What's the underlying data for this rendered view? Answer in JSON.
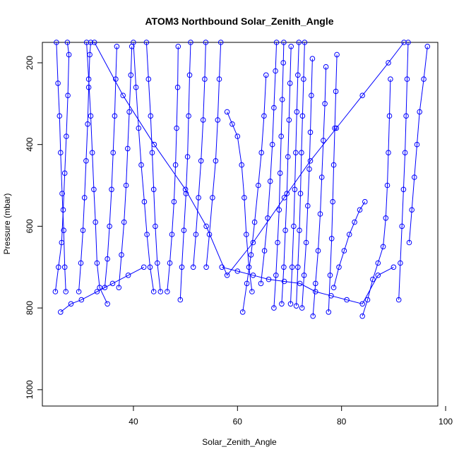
{
  "chart_data": {
    "type": "scatter",
    "title": "ATOM3 Northbound Solar_Zenith_Angle",
    "xlabel": "Solar_Zenith_Angle",
    "ylabel": "Pressure (mbar)",
    "xlim": [
      22.5,
      98.5
    ],
    "ylim": [
      1040,
      150
    ],
    "y_reversed": true,
    "x_ticks": [
      40,
      60,
      80,
      100
    ],
    "y_ticks": [
      200,
      400,
      600,
      800,
      1000
    ],
    "grid": false,
    "legend": "none",
    "color": "#0000ff",
    "series": [
      {
        "points": [
          [
            25,
            760
          ],
          [
            25.6,
            700
          ],
          [
            26.2,
            640
          ],
          [
            26.5,
            560
          ],
          [
            26.8,
            470
          ],
          [
            27.1,
            380
          ],
          [
            27.4,
            280
          ],
          [
            27.6,
            180
          ],
          [
            27.3,
            150
          ]
        ]
      },
      {
        "points": [
          [
            25.2,
            150
          ],
          [
            25.5,
            250
          ],
          [
            25.8,
            330
          ],
          [
            26,
            420
          ],
          [
            26.3,
            520
          ],
          [
            26.6,
            610
          ],
          [
            26.8,
            700
          ],
          [
            27,
            760
          ]
        ]
      },
      {
        "points": [
          [
            29.5,
            760
          ],
          [
            29.9,
            690
          ],
          [
            30.3,
            610
          ],
          [
            30.6,
            530
          ],
          [
            30.9,
            440
          ],
          [
            31.2,
            350
          ],
          [
            31.4,
            260
          ],
          [
            31.6,
            180
          ],
          [
            31.8,
            150
          ]
        ]
      },
      {
        "points": [
          [
            31,
            150
          ],
          [
            31.4,
            240
          ],
          [
            31.8,
            330
          ],
          [
            32.1,
            420
          ],
          [
            32.4,
            510
          ],
          [
            32.7,
            590
          ],
          [
            33,
            690
          ],
          [
            33.5,
            750
          ],
          [
            35,
            790
          ]
        ]
      },
      {
        "points": [
          [
            34.5,
            750
          ],
          [
            35,
            680
          ],
          [
            35.4,
            600
          ],
          [
            35.8,
            510
          ],
          [
            36.1,
            420
          ],
          [
            36.4,
            330
          ],
          [
            36.6,
            240
          ],
          [
            36.8,
            160
          ]
        ]
      },
      {
        "points": [
          [
            37.2,
            750
          ],
          [
            37.7,
            670
          ],
          [
            38.2,
            590
          ],
          [
            38.6,
            500
          ],
          [
            38.9,
            410
          ],
          [
            39.2,
            320
          ],
          [
            39.5,
            230
          ],
          [
            39.7,
            160
          ]
        ]
      },
      {
        "points": [
          [
            40,
            150
          ],
          [
            40.5,
            260
          ],
          [
            41,
            360
          ],
          [
            41.5,
            450
          ],
          [
            42.1,
            540
          ],
          [
            42.6,
            620
          ],
          [
            43.2,
            700
          ],
          [
            43.9,
            760
          ]
        ]
      },
      {
        "points": [
          [
            42.5,
            150
          ],
          [
            42.9,
            240
          ],
          [
            43.3,
            330
          ],
          [
            43.6,
            420
          ],
          [
            43.9,
            510
          ],
          [
            44.2,
            600
          ],
          [
            44.6,
            690
          ],
          [
            45.2,
            760
          ]
        ]
      },
      {
        "points": [
          [
            46.5,
            760
          ],
          [
            47,
            690
          ],
          [
            47.4,
            620
          ],
          [
            47.8,
            540
          ],
          [
            48.1,
            450
          ],
          [
            48.3,
            360
          ],
          [
            48.5,
            260
          ],
          [
            48.6,
            160
          ]
        ]
      },
      {
        "points": [
          [
            49,
            780
          ],
          [
            49.3,
            700
          ],
          [
            49.7,
            610
          ],
          [
            50.1,
            520
          ],
          [
            50.4,
            430
          ],
          [
            50.6,
            330
          ],
          [
            50.8,
            230
          ],
          [
            51,
            150
          ]
        ]
      },
      {
        "points": [
          [
            51.5,
            700
          ],
          [
            52,
            620
          ],
          [
            52.5,
            530
          ],
          [
            53,
            440
          ],
          [
            53.4,
            340
          ],
          [
            53.7,
            240
          ],
          [
            53.9,
            150
          ]
        ]
      },
      {
        "points": [
          [
            54,
            700
          ],
          [
            54.6,
            620
          ],
          [
            55.2,
            530
          ],
          [
            55.8,
            440
          ],
          [
            56.2,
            340
          ],
          [
            56.5,
            240
          ],
          [
            56.8,
            150
          ]
        ]
      },
      {
        "points": [
          [
            58,
            320
          ],
          [
            59,
            350
          ],
          [
            60,
            380
          ],
          [
            60.8,
            450
          ],
          [
            61.3,
            530
          ],
          [
            61.7,
            620
          ],
          [
            62.2,
            700
          ],
          [
            62.8,
            760
          ]
        ]
      },
      {
        "points": [
          [
            61,
            810
          ],
          [
            61.8,
            740
          ],
          [
            62.6,
            670
          ],
          [
            63.3,
            590
          ],
          [
            64,
            500
          ],
          [
            64.6,
            420
          ],
          [
            65.1,
            330
          ],
          [
            65.5,
            230
          ]
        ]
      },
      {
        "points": [
          [
            64.5,
            740
          ],
          [
            65.2,
            660
          ],
          [
            65.8,
            580
          ],
          [
            66.3,
            490
          ],
          [
            66.7,
            400
          ],
          [
            67,
            310
          ],
          [
            67.3,
            220
          ],
          [
            67.5,
            150
          ]
        ]
      },
      {
        "points": [
          [
            67,
            800
          ],
          [
            67.4,
            720
          ],
          [
            67.7,
            640
          ],
          [
            68,
            560
          ],
          [
            68.2,
            470
          ],
          [
            68.4,
            380
          ],
          [
            68.6,
            290
          ],
          [
            68.8,
            200
          ],
          [
            68.9,
            150
          ]
        ]
      },
      {
        "points": [
          [
            68.5,
            790
          ],
          [
            68.9,
            700
          ],
          [
            69.2,
            610
          ],
          [
            69.5,
            520
          ],
          [
            69.7,
            430
          ],
          [
            69.9,
            340
          ],
          [
            70.1,
            250
          ],
          [
            70.3,
            160
          ]
        ]
      },
      {
        "points": [
          [
            70.2,
            790
          ],
          [
            70.5,
            700
          ],
          [
            70.8,
            600
          ],
          [
            71,
            510
          ],
          [
            71.2,
            420
          ],
          [
            71.4,
            320
          ],
          [
            71.6,
            230
          ],
          [
            71.8,
            150
          ]
        ]
      },
      {
        "points": [
          [
            71.3,
            795
          ],
          [
            71.6,
            700
          ],
          [
            71.9,
            610
          ],
          [
            72.1,
            520
          ],
          [
            72.3,
            420
          ],
          [
            72.5,
            330
          ],
          [
            72.7,
            240
          ],
          [
            72.9,
            150
          ]
        ]
      },
      {
        "points": [
          [
            72.4,
            800
          ],
          [
            72.8,
            720
          ],
          [
            73.2,
            640
          ],
          [
            73.5,
            550
          ],
          [
            73.8,
            460
          ],
          [
            74,
            370
          ],
          [
            74.2,
            280
          ],
          [
            74.4,
            190
          ]
        ]
      },
      {
        "points": [
          [
            74.5,
            820
          ],
          [
            75,
            740
          ],
          [
            75.5,
            660
          ],
          [
            75.9,
            570
          ],
          [
            76.2,
            480
          ],
          [
            76.5,
            390
          ],
          [
            76.8,
            300
          ],
          [
            77,
            210
          ]
        ]
      },
      {
        "points": [
          [
            77.5,
            810
          ],
          [
            77.8,
            720
          ],
          [
            78.1,
            630
          ],
          [
            78.3,
            540
          ],
          [
            78.5,
            450
          ],
          [
            78.7,
            360
          ],
          [
            78.9,
            270
          ],
          [
            79.1,
            180
          ]
        ]
      },
      {
        "points": [
          [
            78.5,
            750
          ],
          [
            79.5,
            700
          ],
          [
            80.5,
            660
          ],
          [
            81.5,
            620
          ],
          [
            82.5,
            590
          ],
          [
            83.5,
            560
          ],
          [
            84.5,
            540
          ]
        ]
      },
      {
        "points": [
          [
            84,
            820
          ],
          [
            85,
            780
          ],
          [
            86,
            730
          ],
          [
            87,
            690
          ],
          [
            88,
            650
          ],
          [
            88.5,
            580
          ],
          [
            88.8,
            500
          ],
          [
            89,
            420
          ],
          [
            89.2,
            330
          ],
          [
            89.4,
            240
          ]
        ]
      },
      {
        "points": [
          [
            91,
            780
          ],
          [
            91.3,
            690
          ],
          [
            91.6,
            600
          ],
          [
            91.9,
            510
          ],
          [
            92.2,
            420
          ],
          [
            92.4,
            330
          ],
          [
            92.6,
            240
          ],
          [
            92.8,
            150
          ]
        ]
      },
      {
        "points": [
          [
            93,
            640
          ],
          [
            93.5,
            560
          ],
          [
            94,
            480
          ],
          [
            94.5,
            400
          ],
          [
            95,
            320
          ],
          [
            95.8,
            240
          ],
          [
            96.5,
            160
          ]
        ]
      },
      {
        "points": [
          [
            32.5,
            150
          ],
          [
            38,
            280
          ],
          [
            44,
            400
          ],
          [
            50,
            510
          ],
          [
            54,
            600
          ],
          [
            58,
            720
          ],
          [
            63,
            640
          ],
          [
            69,
            530
          ],
          [
            74,
            440
          ],
          [
            79,
            360
          ],
          [
            84,
            280
          ],
          [
            89,
            200
          ],
          [
            92,
            150
          ]
        ]
      },
      {
        "points": [
          [
            26,
            810
          ],
          [
            28,
            790
          ],
          [
            30,
            780
          ],
          [
            33,
            760
          ],
          [
            36,
            740
          ],
          [
            39,
            720
          ],
          [
            42,
            700
          ]
        ]
      },
      {
        "points": [
          [
            57,
            700
          ],
          [
            60,
            710
          ],
          [
            63,
            720
          ],
          [
            66,
            730
          ],
          [
            69,
            735
          ],
          [
            72,
            740
          ],
          [
            75,
            760
          ],
          [
            78,
            770
          ],
          [
            81,
            780
          ],
          [
            84,
            790
          ],
          [
            87,
            720
          ],
          [
            90,
            700
          ]
        ]
      }
    ]
  }
}
